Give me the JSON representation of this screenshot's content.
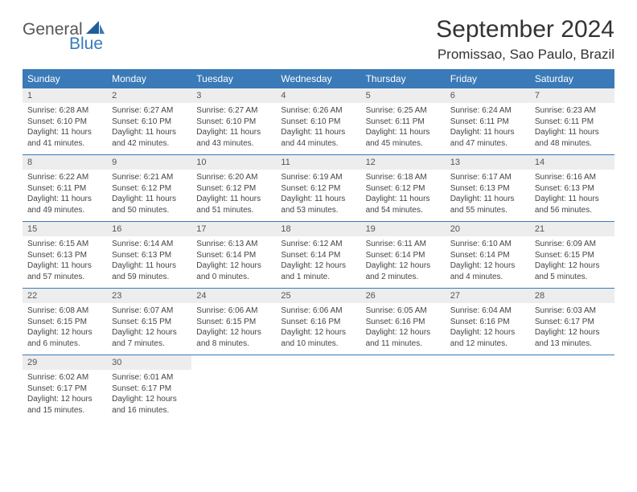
{
  "logo": {
    "general": "General",
    "blue": "Blue"
  },
  "title": "September 2024",
  "location": "Promissao, Sao Paulo, Brazil",
  "colors": {
    "header_bg": "#3a7ab8",
    "header_text": "#ffffff",
    "daynum_bg": "#ededed",
    "border": "#3a7ab8",
    "body_text": "#444444",
    "page_bg": "#ffffff"
  },
  "day_names": [
    "Sunday",
    "Monday",
    "Tuesday",
    "Wednesday",
    "Thursday",
    "Friday",
    "Saturday"
  ],
  "weeks": [
    [
      {
        "n": "1",
        "sr": "Sunrise: 6:28 AM",
        "ss": "Sunset: 6:10 PM",
        "d1": "Daylight: 11 hours",
        "d2": "and 41 minutes."
      },
      {
        "n": "2",
        "sr": "Sunrise: 6:27 AM",
        "ss": "Sunset: 6:10 PM",
        "d1": "Daylight: 11 hours",
        "d2": "and 42 minutes."
      },
      {
        "n": "3",
        "sr": "Sunrise: 6:27 AM",
        "ss": "Sunset: 6:10 PM",
        "d1": "Daylight: 11 hours",
        "d2": "and 43 minutes."
      },
      {
        "n": "4",
        "sr": "Sunrise: 6:26 AM",
        "ss": "Sunset: 6:10 PM",
        "d1": "Daylight: 11 hours",
        "d2": "and 44 minutes."
      },
      {
        "n": "5",
        "sr": "Sunrise: 6:25 AM",
        "ss": "Sunset: 6:11 PM",
        "d1": "Daylight: 11 hours",
        "d2": "and 45 minutes."
      },
      {
        "n": "6",
        "sr": "Sunrise: 6:24 AM",
        "ss": "Sunset: 6:11 PM",
        "d1": "Daylight: 11 hours",
        "d2": "and 47 minutes."
      },
      {
        "n": "7",
        "sr": "Sunrise: 6:23 AM",
        "ss": "Sunset: 6:11 PM",
        "d1": "Daylight: 11 hours",
        "d2": "and 48 minutes."
      }
    ],
    [
      {
        "n": "8",
        "sr": "Sunrise: 6:22 AM",
        "ss": "Sunset: 6:11 PM",
        "d1": "Daylight: 11 hours",
        "d2": "and 49 minutes."
      },
      {
        "n": "9",
        "sr": "Sunrise: 6:21 AM",
        "ss": "Sunset: 6:12 PM",
        "d1": "Daylight: 11 hours",
        "d2": "and 50 minutes."
      },
      {
        "n": "10",
        "sr": "Sunrise: 6:20 AM",
        "ss": "Sunset: 6:12 PM",
        "d1": "Daylight: 11 hours",
        "d2": "and 51 minutes."
      },
      {
        "n": "11",
        "sr": "Sunrise: 6:19 AM",
        "ss": "Sunset: 6:12 PM",
        "d1": "Daylight: 11 hours",
        "d2": "and 53 minutes."
      },
      {
        "n": "12",
        "sr": "Sunrise: 6:18 AM",
        "ss": "Sunset: 6:12 PM",
        "d1": "Daylight: 11 hours",
        "d2": "and 54 minutes."
      },
      {
        "n": "13",
        "sr": "Sunrise: 6:17 AM",
        "ss": "Sunset: 6:13 PM",
        "d1": "Daylight: 11 hours",
        "d2": "and 55 minutes."
      },
      {
        "n": "14",
        "sr": "Sunrise: 6:16 AM",
        "ss": "Sunset: 6:13 PM",
        "d1": "Daylight: 11 hours",
        "d2": "and 56 minutes."
      }
    ],
    [
      {
        "n": "15",
        "sr": "Sunrise: 6:15 AM",
        "ss": "Sunset: 6:13 PM",
        "d1": "Daylight: 11 hours",
        "d2": "and 57 minutes."
      },
      {
        "n": "16",
        "sr": "Sunrise: 6:14 AM",
        "ss": "Sunset: 6:13 PM",
        "d1": "Daylight: 11 hours",
        "d2": "and 59 minutes."
      },
      {
        "n": "17",
        "sr": "Sunrise: 6:13 AM",
        "ss": "Sunset: 6:14 PM",
        "d1": "Daylight: 12 hours",
        "d2": "and 0 minutes."
      },
      {
        "n": "18",
        "sr": "Sunrise: 6:12 AM",
        "ss": "Sunset: 6:14 PM",
        "d1": "Daylight: 12 hours",
        "d2": "and 1 minute."
      },
      {
        "n": "19",
        "sr": "Sunrise: 6:11 AM",
        "ss": "Sunset: 6:14 PM",
        "d1": "Daylight: 12 hours",
        "d2": "and 2 minutes."
      },
      {
        "n": "20",
        "sr": "Sunrise: 6:10 AM",
        "ss": "Sunset: 6:14 PM",
        "d1": "Daylight: 12 hours",
        "d2": "and 4 minutes."
      },
      {
        "n": "21",
        "sr": "Sunrise: 6:09 AM",
        "ss": "Sunset: 6:15 PM",
        "d1": "Daylight: 12 hours",
        "d2": "and 5 minutes."
      }
    ],
    [
      {
        "n": "22",
        "sr": "Sunrise: 6:08 AM",
        "ss": "Sunset: 6:15 PM",
        "d1": "Daylight: 12 hours",
        "d2": "and 6 minutes."
      },
      {
        "n": "23",
        "sr": "Sunrise: 6:07 AM",
        "ss": "Sunset: 6:15 PM",
        "d1": "Daylight: 12 hours",
        "d2": "and 7 minutes."
      },
      {
        "n": "24",
        "sr": "Sunrise: 6:06 AM",
        "ss": "Sunset: 6:15 PM",
        "d1": "Daylight: 12 hours",
        "d2": "and 8 minutes."
      },
      {
        "n": "25",
        "sr": "Sunrise: 6:06 AM",
        "ss": "Sunset: 6:16 PM",
        "d1": "Daylight: 12 hours",
        "d2": "and 10 minutes."
      },
      {
        "n": "26",
        "sr": "Sunrise: 6:05 AM",
        "ss": "Sunset: 6:16 PM",
        "d1": "Daylight: 12 hours",
        "d2": "and 11 minutes."
      },
      {
        "n": "27",
        "sr": "Sunrise: 6:04 AM",
        "ss": "Sunset: 6:16 PM",
        "d1": "Daylight: 12 hours",
        "d2": "and 12 minutes."
      },
      {
        "n": "28",
        "sr": "Sunrise: 6:03 AM",
        "ss": "Sunset: 6:17 PM",
        "d1": "Daylight: 12 hours",
        "d2": "and 13 minutes."
      }
    ],
    [
      {
        "n": "29",
        "sr": "Sunrise: 6:02 AM",
        "ss": "Sunset: 6:17 PM",
        "d1": "Daylight: 12 hours",
        "d2": "and 15 minutes."
      },
      {
        "n": "30",
        "sr": "Sunrise: 6:01 AM",
        "ss": "Sunset: 6:17 PM",
        "d1": "Daylight: 12 hours",
        "d2": "and 16 minutes."
      },
      {
        "empty": true
      },
      {
        "empty": true
      },
      {
        "empty": true
      },
      {
        "empty": true
      },
      {
        "empty": true
      }
    ]
  ]
}
